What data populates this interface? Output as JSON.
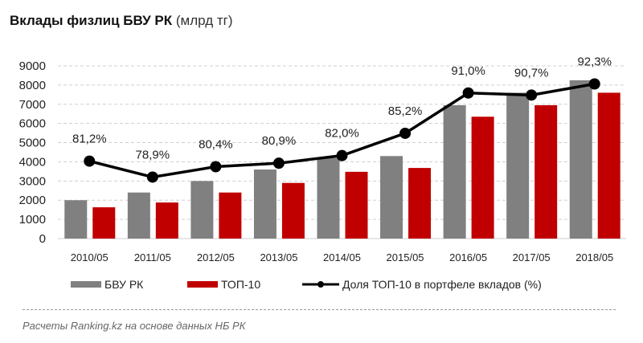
{
  "title": {
    "main": "Вклады физлиц БВУ РК",
    "unit": "(млрд тг)"
  },
  "chart_data": {
    "type": "bar",
    "title": "Вклады физлиц БВУ РК (млрд тг)",
    "categories": [
      "2010/05",
      "2011/05",
      "2012/05",
      "2013/05",
      "2014/05",
      "2015/05",
      "2016/05",
      "2017/05",
      "2018/05"
    ],
    "series": [
      {
        "name": "БВУ РК",
        "type": "bar",
        "color": "#808080",
        "values": [
          2000,
          2400,
          3000,
          3600,
          4200,
          4300,
          6950,
          7600,
          8250
        ]
      },
      {
        "name": "ТОП-10",
        "type": "bar",
        "color": "#c00000",
        "values": [
          1630,
          1880,
          2400,
          2900,
          3480,
          3680,
          6350,
          6950,
          7600
        ]
      },
      {
        "name": "Доля ТОП-10 в портфеле вкладов (%)",
        "type": "line",
        "axis": "secondary",
        "color": "#000000",
        "values": [
          81.2,
          78.9,
          80.4,
          80.9,
          82.0,
          85.2,
          91.0,
          90.7,
          92.3
        ],
        "labels": [
          "81,2%",
          "78,9%",
          "80,4%",
          "80,9%",
          "82,0%",
          "85,2%",
          "91,0%",
          "90,7%",
          "92,3%"
        ]
      }
    ],
    "ylim": [
      0,
      9000
    ],
    "yticks": [
      "0",
      "1000",
      "2000",
      "3000",
      "4000",
      "5000",
      "6000",
      "7000",
      "8000",
      "9000"
    ],
    "y2lim": [
      70.06,
      94.9
    ],
    "grid": true,
    "legend": "bottom"
  },
  "legend": {
    "bbu": "БВУ РК",
    "top10": "ТОП-10",
    "share": "Доля ТОП-10 в портфеле вкладов (%)"
  },
  "footer": "Расчеты Ranking.kz на основе данных  НБ РК"
}
